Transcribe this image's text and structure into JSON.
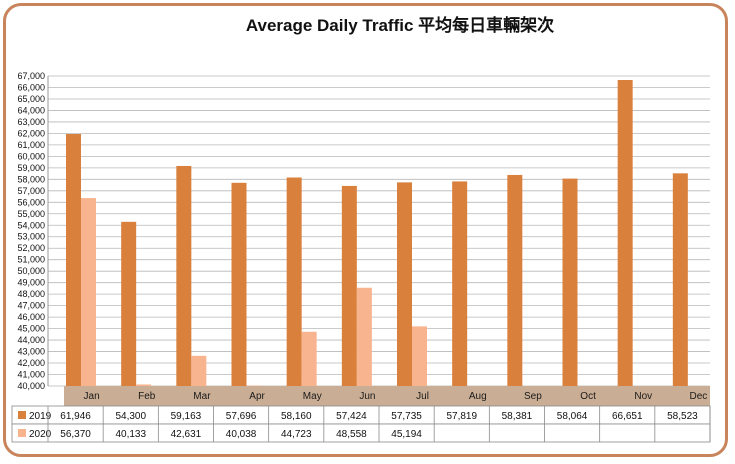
{
  "chart_data": {
    "type": "bar",
    "title": "Average Daily Traffic 平均每日車輛架次",
    "categories": [
      "Jan",
      "Feb",
      "Mar",
      "Apr",
      "May",
      "Jun",
      "Jul",
      "Aug",
      "Sep",
      "Oct",
      "Nov",
      "Dec"
    ],
    "ylim": [
      40000,
      67000
    ],
    "ytick_step": 1000,
    "grid": true,
    "legend": "data-table",
    "series": [
      {
        "name": "2019",
        "color": "#d9803c",
        "values": [
          61946,
          54300,
          59163,
          57696,
          58160,
          57424,
          57735,
          57819,
          58381,
          58064,
          66651,
          58523
        ],
        "labels": [
          "61,946",
          "54,300",
          "59,163",
          "57,696",
          "58,160",
          "57,424",
          "57,735",
          "57,819",
          "58,381",
          "58,064",
          "66,651",
          "58,523"
        ]
      },
      {
        "name": "2020",
        "color": "#f7b48e",
        "values": [
          56370,
          40133,
          42631,
          40038,
          44723,
          48558,
          45194,
          null,
          null,
          null,
          null,
          null
        ],
        "labels": [
          "56,370",
          "40,133",
          "42,631",
          "40,038",
          "44,723",
          "48,558",
          "45,194",
          "",
          "",
          "",
          "",
          ""
        ]
      }
    ]
  }
}
